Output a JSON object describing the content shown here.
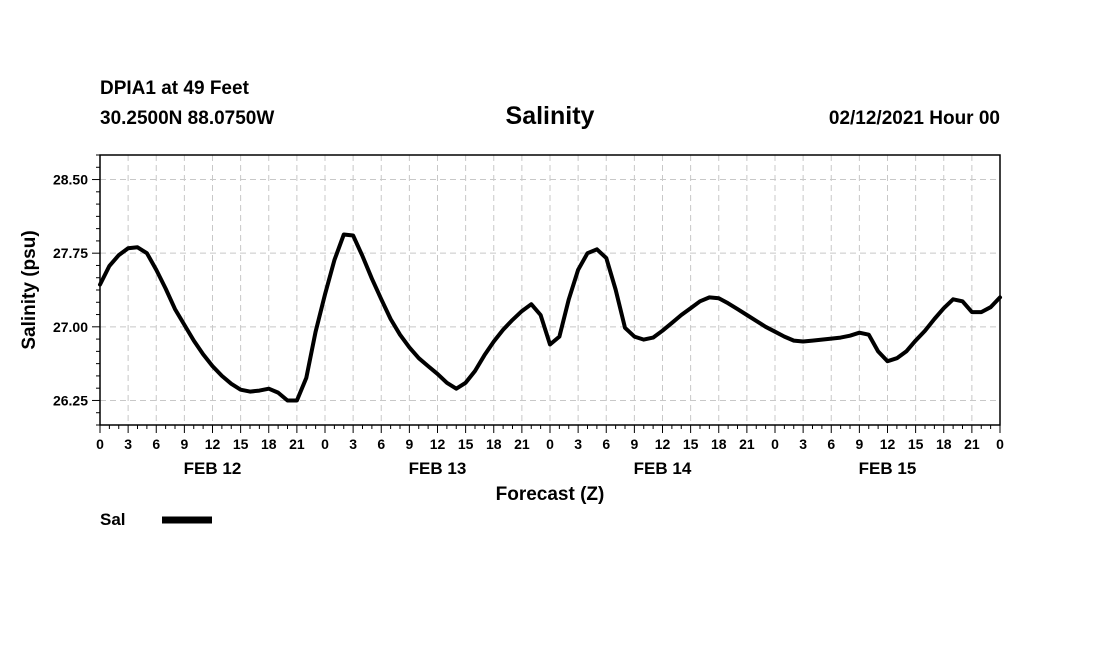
{
  "header": {
    "station": "DPIA1 at 49 Feet",
    "coords": "30.2500N 88.0750W",
    "title": "Salinity",
    "run_time": "02/12/2021 Hour 00"
  },
  "legend": {
    "label": "Sal"
  },
  "chart_data": {
    "type": "line",
    "title": "Salinity",
    "xlabel": "Forecast (Z)",
    "ylabel": "Salinity (psu)",
    "xlim": [
      0,
      96
    ],
    "ylim": [
      26.0,
      28.75
    ],
    "grid": true,
    "legend_position": "bottom-left",
    "x_tick_hours": [
      0,
      3,
      6,
      9,
      12,
      15,
      18,
      21,
      24,
      27,
      30,
      33,
      36,
      39,
      42,
      45,
      48,
      51,
      54,
      57,
      60,
      63,
      66,
      69,
      72,
      75,
      78,
      81,
      84,
      87,
      90,
      93,
      96
    ],
    "x_tick_labels": [
      "0",
      "3",
      "6",
      "9",
      "12",
      "15",
      "18",
      "21",
      "0",
      "3",
      "6",
      "9",
      "12",
      "15",
      "18",
      "21",
      "0",
      "3",
      "6",
      "9",
      "12",
      "15",
      "18",
      "21",
      "0",
      "3",
      "6",
      "9",
      "12",
      "15",
      "18",
      "21",
      "0"
    ],
    "day_labels": [
      {
        "label": "FEB 12",
        "hour": 12
      },
      {
        "label": "FEB 13",
        "hour": 36
      },
      {
        "label": "FEB 14",
        "hour": 60
      },
      {
        "label": "FEB 15",
        "hour": 84
      }
    ],
    "y_ticks": [
      26.25,
      27.0,
      27.75,
      28.5
    ],
    "y_tick_labels": [
      "26.25",
      "27.00",
      "27.75",
      "28.50"
    ],
    "series": [
      {
        "name": "Sal",
        "x": [
          0,
          1,
          2,
          3,
          4,
          5,
          6,
          7,
          8,
          9,
          10,
          11,
          12,
          13,
          14,
          15,
          16,
          17,
          18,
          19,
          20,
          21,
          22,
          23,
          24,
          25,
          26,
          27,
          28,
          29,
          30,
          31,
          32,
          33,
          34,
          35,
          36,
          37,
          38,
          39,
          40,
          41,
          42,
          43,
          44,
          45,
          46,
          47,
          48,
          49,
          50,
          51,
          52,
          53,
          54,
          55,
          56,
          57,
          58,
          59,
          60,
          61,
          62,
          63,
          64,
          65,
          66,
          67,
          68,
          69,
          70,
          71,
          72,
          73,
          74,
          75,
          76,
          77,
          78,
          79,
          80,
          81,
          82,
          83,
          84,
          85,
          86,
          87,
          88,
          89,
          90,
          91,
          92,
          93,
          94,
          95,
          96
        ],
        "values": [
          27.43,
          27.62,
          27.73,
          27.8,
          27.81,
          27.75,
          27.58,
          27.39,
          27.18,
          27.02,
          26.86,
          26.72,
          26.6,
          26.5,
          26.42,
          26.36,
          26.34,
          26.35,
          26.37,
          26.33,
          26.25,
          26.25,
          26.48,
          26.95,
          27.33,
          27.68,
          27.94,
          27.93,
          27.72,
          27.49,
          27.28,
          27.08,
          26.92,
          26.79,
          26.68,
          26.6,
          26.52,
          26.43,
          26.37,
          26.43,
          26.55,
          26.71,
          26.85,
          26.97,
          27.07,
          27.16,
          27.23,
          27.12,
          26.82,
          26.9,
          27.28,
          27.58,
          27.75,
          27.79,
          27.7,
          27.38,
          26.99,
          26.9,
          26.87,
          26.89,
          26.96,
          27.04,
          27.12,
          27.19,
          27.26,
          27.3,
          27.29,
          27.24,
          27.18,
          27.12,
          27.06,
          27.0,
          26.95,
          26.9,
          26.86,
          26.85,
          26.86,
          26.87,
          26.88,
          26.89,
          26.91,
          26.94,
          26.92,
          26.75,
          26.65,
          26.68,
          26.75,
          26.86,
          26.96,
          27.08,
          27.19,
          27.28,
          27.26,
          27.15,
          27.15,
          27.2,
          27.3
        ]
      }
    ]
  }
}
